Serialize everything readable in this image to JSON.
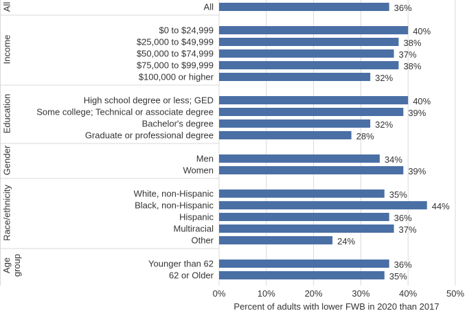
{
  "chart_data": {
    "type": "bar",
    "orientation": "horizontal",
    "xlabel": "Percent of adults with lower FWB in 2020 than 2017",
    "xlim": [
      0,
      50
    ],
    "xticks": [
      "0%",
      "10%",
      "20%",
      "30%",
      "40%",
      "50%"
    ],
    "value_suffix": "%",
    "bar_color": "#4a6fa5",
    "groups": [
      {
        "name": "All",
        "categories": [
          {
            "label": "All",
            "value": 36
          }
        ]
      },
      {
        "name": "Income",
        "categories": [
          {
            "label": "$0 to $24,999",
            "value": 40
          },
          {
            "label": "$25,000 to $49,999",
            "value": 38
          },
          {
            "label": "$50,000 to $74,999",
            "value": 37
          },
          {
            "label": "$75,000 to $99,999",
            "value": 38
          },
          {
            "label": "$100,000 or higher",
            "value": 32
          }
        ]
      },
      {
        "name": "Education",
        "categories": [
          {
            "label": "High school degree or less; GED",
            "value": 40
          },
          {
            "label": "Some college; Technical or associate degree",
            "value": 39
          },
          {
            "label": "Bachelor's degree",
            "value": 32
          },
          {
            "label": "Graduate or professional degree",
            "value": 28
          }
        ]
      },
      {
        "name": "Gender",
        "categories": [
          {
            "label": "Men",
            "value": 34
          },
          {
            "label": "Women",
            "value": 39
          }
        ]
      },
      {
        "name": "Race/ethnicity",
        "categories": [
          {
            "label": "White, non-Hispanic",
            "value": 35
          },
          {
            "label": "Black, non-Hispanic",
            "value": 44
          },
          {
            "label": "Hispanic",
            "value": 36
          },
          {
            "label": "Multiracial",
            "value": 37
          },
          {
            "label": "Other",
            "value": 24
          }
        ]
      },
      {
        "name": "Age group",
        "name_lines": [
          "Age",
          "group"
        ],
        "categories": [
          {
            "label": "Younger than 62",
            "value": 36
          },
          {
            "label": "62 or Older",
            "value": 35
          }
        ]
      }
    ]
  }
}
